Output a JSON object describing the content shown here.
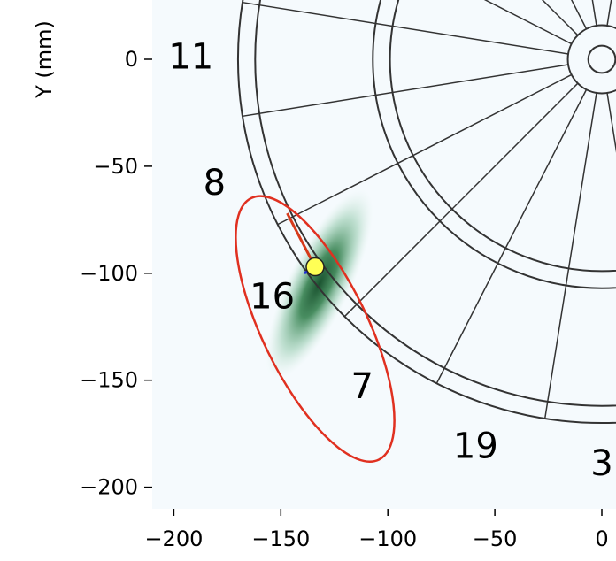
{
  "chart_data": {
    "type": "scatter",
    "title": "",
    "xlabel": "",
    "ylabel": "Y (mm)",
    "xlim": [
      -210,
      7
    ],
    "ylim": [
      -210,
      28
    ],
    "xticks": [
      -200,
      -150,
      -100,
      -50,
      0
    ],
    "yticks": [
      0,
      -50,
      -100,
      -150,
      -200
    ],
    "xtick_labels": [
      "−200",
      "−150",
      "−100",
      "−50",
      "0"
    ],
    "ytick_labels": [
      "0",
      "−50",
      "−100",
      "−150",
      "−200"
    ],
    "board": {
      "radii_mm": [
        6.35,
        15.9,
        99,
        107,
        162,
        170
      ],
      "sector_numbers": [
        {
          "label": "11",
          "x": -192,
          "y": 1
        },
        {
          "label": "8",
          "x": -181,
          "y": -58
        },
        {
          "label": "16",
          "x": -154,
          "y": -111
        },
        {
          "label": "7",
          "x": -112,
          "y": -153
        },
        {
          "label": "19",
          "x": -59,
          "y": -181
        },
        {
          "label": "3",
          "x": 0,
          "y": -189
        }
      ]
    },
    "estimate_point": {
      "x": -134,
      "y": -97
    },
    "ellipse": {
      "cx": -134,
      "cy": -126,
      "width": 49,
      "height": 136,
      "angle_deg": 26
    },
    "colors": {
      "board_lines": "#333333",
      "ellipse": "#e03020",
      "point_fill": "#ffff55",
      "density": "#1f6b3a",
      "axes_bg": "#f5fafd",
      "arrow_red": "#d63a1a",
      "arrow_blue": "#1f2fd6"
    }
  }
}
